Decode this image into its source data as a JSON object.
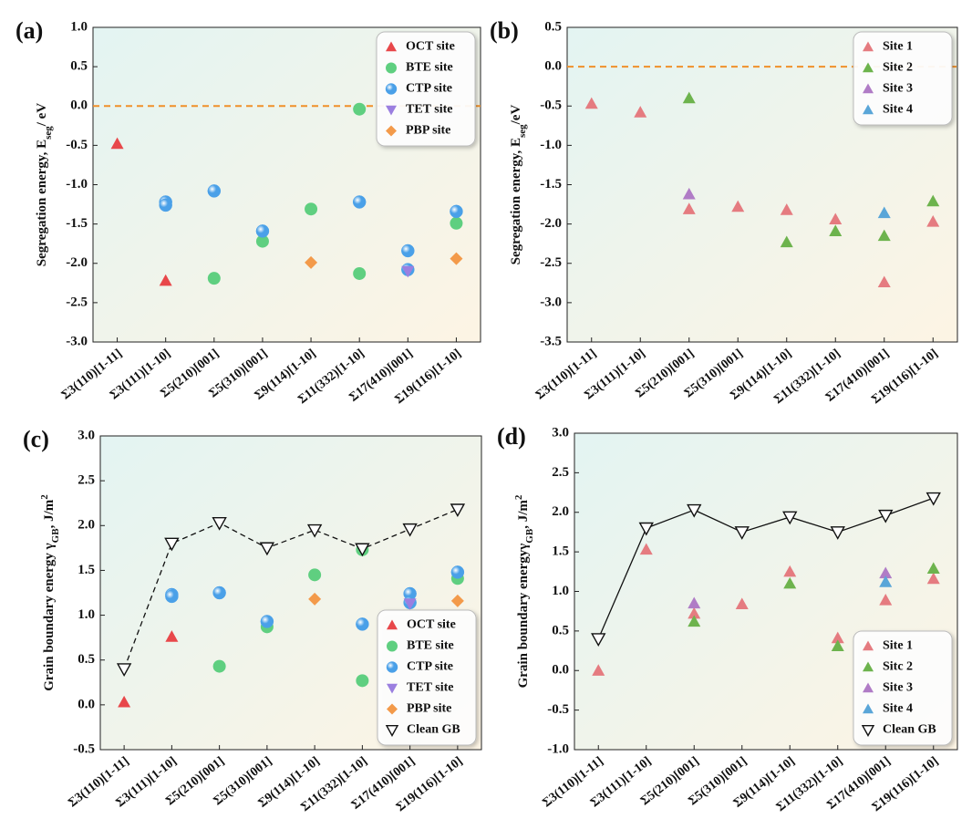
{
  "chart_data": [
    {
      "type": "scatter",
      "label": "(a)",
      "ylabel": [
        {
          "text": "Segregation energy, E"
        },
        {
          "text": "seg",
          "script": "sub"
        },
        {
          "text": "/ eV"
        }
      ],
      "categories": [
        "Σ3(110)[1-11]",
        "Σ3(111)[1-10]",
        "Σ5(210)[001]",
        "Σ5(310)[001]",
        "Σ9(114)[1-10]",
        "Σ11(332)[1-10]",
        "Σ17(410)[001]",
        "Σ19(116)[1-10]"
      ],
      "series": [
        {
          "name": "OCT site",
          "color": "#e8474a",
          "marker": "triangle",
          "x": [
            "Σ3(110)[1-11]",
            "Σ3(111)[1-10]"
          ],
          "values": [
            -0.48,
            -2.22
          ]
        },
        {
          "name": "BTE site",
          "color": "#5fcf80",
          "marker": "circle",
          "x": [
            "Σ5(210)[001]",
            "Σ5(310)[001]",
            "Σ9(114)[1-10]",
            "Σ11(332)[1-10]",
            "Σ11(332)[1-10]",
            "Σ19(116)[1-10]"
          ],
          "values": [
            -2.19,
            -1.72,
            -1.31,
            -0.04,
            -2.13,
            -1.49
          ]
        },
        {
          "name": "CTP site",
          "color": "#4aa0e8",
          "marker": "sphere",
          "x": [
            "Σ3(111)[1-10]",
            "Σ3(111)[1-10]",
            "Σ5(210)[001]",
            "Σ5(310)[001]",
            "Σ11(332)[1-10]",
            "Σ17(410)[001]",
            "Σ17(410)[001]",
            "Σ19(116)[1-10]"
          ],
          "values": [
            -1.22,
            -1.26,
            -1.08,
            -1.59,
            -1.22,
            -1.84,
            -2.08,
            -1.34
          ]
        },
        {
          "name": "TET site",
          "color": "#9b7fe0",
          "marker": "triangle-down",
          "x": [
            "Σ17(410)[001]"
          ],
          "values": [
            -2.1
          ]
        },
        {
          "name": "PBP site",
          "color": "#f39a4a",
          "marker": "diamond",
          "x": [
            "Σ9(114)[1-10]",
            "Σ19(116)[1-10]"
          ],
          "values": [
            -1.99,
            -1.94
          ]
        }
      ],
      "ylim": [
        -3,
        1
      ],
      "yticks": [
        {
          "value": -3,
          "label": "-3.0"
        },
        -2.5,
        {
          "value": -2,
          "label": "-2.0"
        },
        -1.5,
        {
          "value": -1,
          "label": "-1.0"
        },
        -0.5,
        {
          "value": 0,
          "label": "0.0"
        },
        0.5,
        {
          "value": 1,
          "label": "1.0"
        }
      ],
      "hline": {
        "value": 0,
        "color": "#f0902a"
      },
      "legend": "upper right"
    },
    {
      "type": "scatter",
      "label": "(b)",
      "ylabel": [
        {
          "text": "Segregation energy, E"
        },
        {
          "text": "seg",
          "script": "sub"
        },
        {
          "text": "/eV"
        }
      ],
      "categories": [
        "Σ3(110)[1-11]",
        "Σ3(111)[1-10]",
        "Σ5(210)[001]",
        "Σ5(310)[001]",
        "Σ9(114)[1-10]",
        "Σ11(332)[1-10]",
        "Σ17(410)[001]",
        "Σ19(116)[1-10]"
      ],
      "series": [
        {
          "name": "Site 1",
          "color": "#e57b80",
          "marker": "triangle",
          "x": [
            "Σ3(110)[1-11]",
            "Σ3(111)[1-10]",
            "Σ5(210)[001]",
            "Σ5(310)[001]",
            "Σ9(114)[1-10]",
            "Σ11(332)[1-10]",
            "Σ17(410)[001]",
            "Σ19(116)[1-10]"
          ],
          "values": [
            -0.47,
            -0.58,
            -1.81,
            -1.78,
            -1.82,
            -1.94,
            -2.74,
            -1.97
          ]
        },
        {
          "name": "Site 2",
          "color": "#6db34d",
          "marker": "triangle",
          "x": [
            "Σ5(210)[001]",
            "Σ9(114)[1-10]",
            "Σ11(332)[1-10]",
            "Σ17(410)[001]",
            "Σ19(116)[1-10]"
          ],
          "values": [
            -0.4,
            -2.23,
            -2.09,
            -2.15,
            -1.71
          ]
        },
        {
          "name": "Site 3",
          "color": "#b07cc6",
          "marker": "triangle",
          "x": [
            "Σ5(210)[001]"
          ],
          "values": [
            -1.62
          ]
        },
        {
          "name": "Site 4",
          "color": "#5aa6d8",
          "marker": "triangle",
          "x": [
            "Σ17(410)[001]"
          ],
          "values": [
            -1.86
          ]
        }
      ],
      "ylim": [
        -3.5,
        0.5
      ],
      "yticks": [
        -3.5,
        {
          "value": -3,
          "label": "-3.0"
        },
        -2.5,
        {
          "value": -2,
          "label": "-2.0"
        },
        -1.5,
        {
          "value": -1,
          "label": "-1.0"
        },
        -0.5,
        {
          "value": 0,
          "label": "0.0"
        },
        0.5
      ],
      "hline": {
        "value": 0,
        "color": "#f0902a"
      },
      "legend": "upper right"
    },
    {
      "type": "scatter",
      "label": "(c)",
      "ylabel": [
        {
          "text": "Grain boundary energy γ"
        },
        {
          "text": "GB",
          "script": "sub"
        },
        {
          "text": ", J/m"
        },
        {
          "text": "2",
          "script": "super"
        }
      ],
      "categories": [
        "Σ3(110)[1-11]",
        "Σ3(111)[1-10]",
        "Σ5(210)[001]",
        "Σ5(310)[001]",
        "Σ9(114)[1-10]",
        "Σ11(332)[1-10]",
        "Σ17(410)[001]",
        "Σ19(116)[1-10]"
      ],
      "series": [
        {
          "name": "OCT site",
          "color": "#e8474a",
          "marker": "triangle",
          "x": [
            "Σ3(110)[1-11]",
            "Σ3(111)[1-10]"
          ],
          "values": [
            0.03,
            0.76
          ]
        },
        {
          "name": "BTE site",
          "color": "#5fcf80",
          "marker": "circle",
          "x": [
            "Σ5(210)[001]",
            "Σ5(310)[001]",
            "Σ9(114)[1-10]",
            "Σ11(332)[1-10]",
            "Σ11(332)[1-10]",
            "Σ19(116)[1-10]"
          ],
          "values": [
            0.43,
            0.87,
            1.45,
            1.73,
            0.27,
            1.41
          ]
        },
        {
          "name": "CTP site",
          "color": "#4aa0e8",
          "marker": "sphere",
          "x": [
            "Σ3(111)[1-10]",
            "Σ3(111)[1-10]",
            "Σ5(210)[001]",
            "Σ5(310)[001]",
            "Σ11(332)[1-10]",
            "Σ17(410)[001]",
            "Σ17(410)[001]",
            "Σ19(116)[1-10]"
          ],
          "values": [
            1.23,
            1.21,
            1.25,
            0.93,
            0.9,
            1.24,
            1.14,
            1.48
          ]
        },
        {
          "name": "TET site",
          "color": "#9b7fe0",
          "marker": "triangle-down",
          "x": [
            "Σ17(410)[001]"
          ],
          "values": [
            1.13
          ]
        },
        {
          "name": "PBP site",
          "color": "#f39a4a",
          "marker": "diamond",
          "x": [
            "Σ9(114)[1-10]",
            "Σ19(116)[1-10]"
          ],
          "values": [
            1.18,
            1.16
          ]
        },
        {
          "name": "Clean GB",
          "color": "#111111",
          "marker": "open-triangle-down",
          "line": "dashed",
          "x": [
            "Σ3(110)[1-11]",
            "Σ3(111)[1-10]",
            "Σ5(210)[001]",
            "Σ5(310)[001]",
            "Σ9(114)[1-10]",
            "Σ11(332)[1-10]",
            "Σ17(410)[001]",
            "Σ19(116)[1-10]"
          ],
          "values": [
            0.4,
            1.8,
            2.03,
            1.75,
            1.95,
            1.74,
            1.96,
            2.18
          ]
        }
      ],
      "ylim": [
        -0.5,
        3
      ],
      "yticks": [
        -0.5,
        {
          "value": 0,
          "label": "0.0"
        },
        0.5,
        {
          "value": 1,
          "label": "1.0"
        },
        1.5,
        {
          "value": 2,
          "label": "2.0"
        },
        2.5,
        {
          "value": 3,
          "label": "3.0"
        }
      ],
      "legend": "lower right"
    },
    {
      "type": "scatter",
      "label": "(d)",
      "ylabel": [
        {
          "text": "Grain boundary energyγ"
        },
        {
          "text": "GB",
          "script": "sub"
        },
        {
          "text": ", J/m"
        },
        {
          "text": "2",
          "script": "super"
        }
      ],
      "categories": [
        "Σ3(110)[1-11]",
        "Σ3(111)[1-10]",
        "Σ5(210)[001]",
        "Σ5(310)[001]",
        "Σ9(114)[1-10]",
        "Σ11(332)[1-10]",
        "Σ17(410)[001]",
        "Σ19(116)[1-10]"
      ],
      "series": [
        {
          "name": "Site 1",
          "color": "#e57b80",
          "marker": "triangle",
          "x": [
            "Σ3(110)[1-11]",
            "Σ3(111)[1-10]",
            "Σ5(210)[001]",
            "Σ5(310)[001]",
            "Σ9(114)[1-10]",
            "Σ11(332)[1-10]",
            "Σ17(410)[001]",
            "Σ19(116)[1-10]"
          ],
          "values": [
            0,
            1.53,
            0.72,
            0.84,
            1.25,
            0.41,
            0.89,
            1.16
          ]
        },
        {
          "name": "Sitc 2",
          "color": "#6db34d",
          "marker": "triangle",
          "x": [
            "Σ5(210)[001]",
            "Σ9(114)[1-10]",
            "Σ11(332)[1-10]",
            "Σ19(116)[1-10]"
          ],
          "values": [
            0.62,
            1.1,
            0.31,
            1.29
          ]
        },
        {
          "name": "Site 3",
          "color": "#b07cc6",
          "marker": "triangle",
          "x": [
            "Σ5(210)[001]",
            "Σ17(410)[001]"
          ],
          "values": [
            0.85,
            1.23
          ]
        },
        {
          "name": "Site 4",
          "color": "#5aa6d8",
          "marker": "triangle",
          "x": [
            "Σ17(410)[001]"
          ],
          "values": [
            1.12
          ]
        },
        {
          "name": "Clean GB",
          "color": "#111111",
          "marker": "open-triangle-down",
          "line": "solid",
          "x": [
            "Σ3(110)[1-11]",
            "Σ3(111)[1-10]",
            "Σ5(210)[001]",
            "Σ5(310)[001]",
            "Σ9(114)[1-10]",
            "Σ11(332)[1-10]",
            "Σ17(410)[001]",
            "Σ19(116)[1-10]"
          ],
          "values": [
            0.4,
            1.8,
            2.03,
            1.75,
            1.94,
            1.75,
            1.96,
            2.18
          ]
        }
      ],
      "ylim": [
        -1,
        3
      ],
      "yticks": [
        {
          "value": -1,
          "label": "-1.0"
        },
        -0.5,
        {
          "value": 0,
          "label": "0.0"
        },
        0.5,
        {
          "value": 1,
          "label": "1.0"
        },
        1.5,
        {
          "value": 2,
          "label": "2.0"
        },
        2.5,
        {
          "value": 3,
          "label": "3.0"
        }
      ],
      "legend": "lower right"
    }
  ]
}
